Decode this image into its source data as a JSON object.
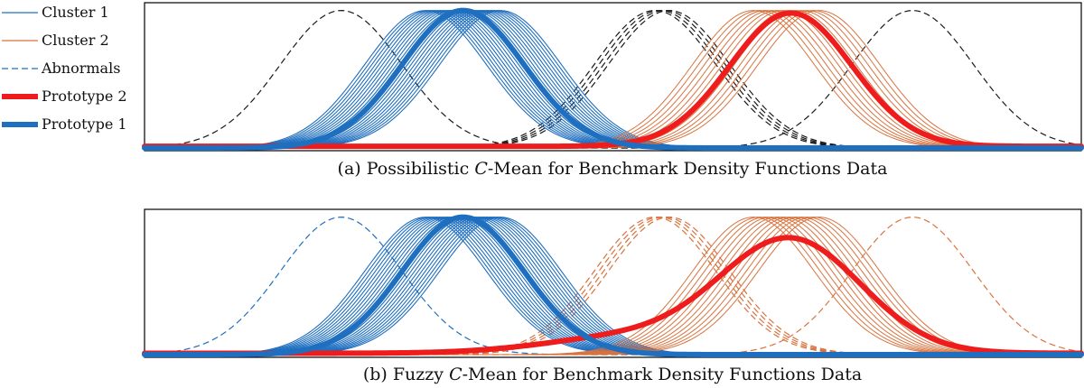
{
  "colors": {
    "cluster1": "#1f6fc0",
    "cluster2": "#d9733f",
    "prototype1": "#1f6fc0",
    "prototype2": "#ee1c1c",
    "abnormal_a": "#1a1a1a",
    "frame": "#000000"
  },
  "legend": {
    "items": [
      {
        "label": "Cluster 1",
        "style": "thin-solid",
        "color": "#1f6fc0"
      },
      {
        "label": "Cluster 2",
        "style": "thin-solid",
        "color": "#d9733f"
      },
      {
        "label": "Abnormals",
        "style": "dashed",
        "color": "#1f6fc0"
      },
      {
        "label": "Prototype 2",
        "style": "thick-solid",
        "color": "#ee1c1c"
      },
      {
        "label": "Prototype 1",
        "style": "thick-solid",
        "color": "#1f6fc0"
      }
    ]
  },
  "chart_data": [
    {
      "type": "line",
      "title": "(a) Possibilistic C-Mean for Benchmark Density Functions Data",
      "caption_parts": [
        "(a) Possibilistic ",
        "C",
        "-Mean for Benchmark Density Functions Data"
      ],
      "xlim": [
        0,
        1
      ],
      "ylim": [
        0,
        1.05
      ],
      "grid": false,
      "legend_placement": "left",
      "cluster1": {
        "means": [
          0.3,
          0.34,
          0.38
        ],
        "count": 22,
        "sigma": 0.065,
        "color": "#1f6fc0"
      },
      "cluster2": {
        "means": [
          0.65,
          0.72
        ],
        "count": 12,
        "sigma": 0.065,
        "color": "#d9733f"
      },
      "abnormals": {
        "sigma": 0.065,
        "color": "#1a1a1a",
        "means": [
          0.21,
          0.545,
          0.55,
          0.555,
          0.56,
          0.82
        ]
      },
      "prototype1": {
        "kind": "gauss",
        "mean": 0.34,
        "sigma": 0.065,
        "amp": 1.0,
        "floor": 0.0,
        "color": "#1f6fc0"
      },
      "prototype2": {
        "kind": "gauss",
        "mean": 0.69,
        "sigma": 0.065,
        "amp": 0.97,
        "floor": 0.012,
        "color": "#ee1c1c"
      }
    },
    {
      "type": "line",
      "title": "(b) Fuzzy C-Mean for Benchmark Density Functions Data",
      "caption_parts": [
        "(b) Fuzzy ",
        "C",
        "-Mean for Benchmark Density Functions Data"
      ],
      "xlim": [
        0,
        1
      ],
      "ylim": [
        0,
        1.05
      ],
      "grid": false,
      "legend_placement": "none",
      "cluster1": {
        "means": [
          0.3,
          0.34,
          0.38
        ],
        "count": 22,
        "sigma": 0.065,
        "color": "#1f6fc0"
      },
      "cluster2": {
        "means": [
          0.65,
          0.72
        ],
        "count": 12,
        "sigma": 0.065,
        "color": "#d9733f"
      },
      "abnormals": {
        "sigma": 0.065,
        "colors": [
          "#1f6fc0",
          "#d9733f",
          "#d9733f",
          "#d9733f",
          "#d9733f",
          "#d9733f"
        ],
        "means": [
          0.21,
          0.545,
          0.55,
          0.555,
          0.56,
          0.82
        ]
      },
      "prototype1": {
        "kind": "gauss",
        "mean": 0.34,
        "sigma": 0.065,
        "amp": 1.0,
        "floor": 0.0,
        "color": "#1f6fc0"
      },
      "prototype2": {
        "kind": "mixture",
        "mean": 0.69,
        "sigma": 0.075,
        "amp": 0.82,
        "shoulder_mean": 0.52,
        "shoulder_sigma": 0.09,
        "shoulder_amp": 0.12,
        "floor": 0.01,
        "color": "#ee1c1c"
      }
    }
  ]
}
